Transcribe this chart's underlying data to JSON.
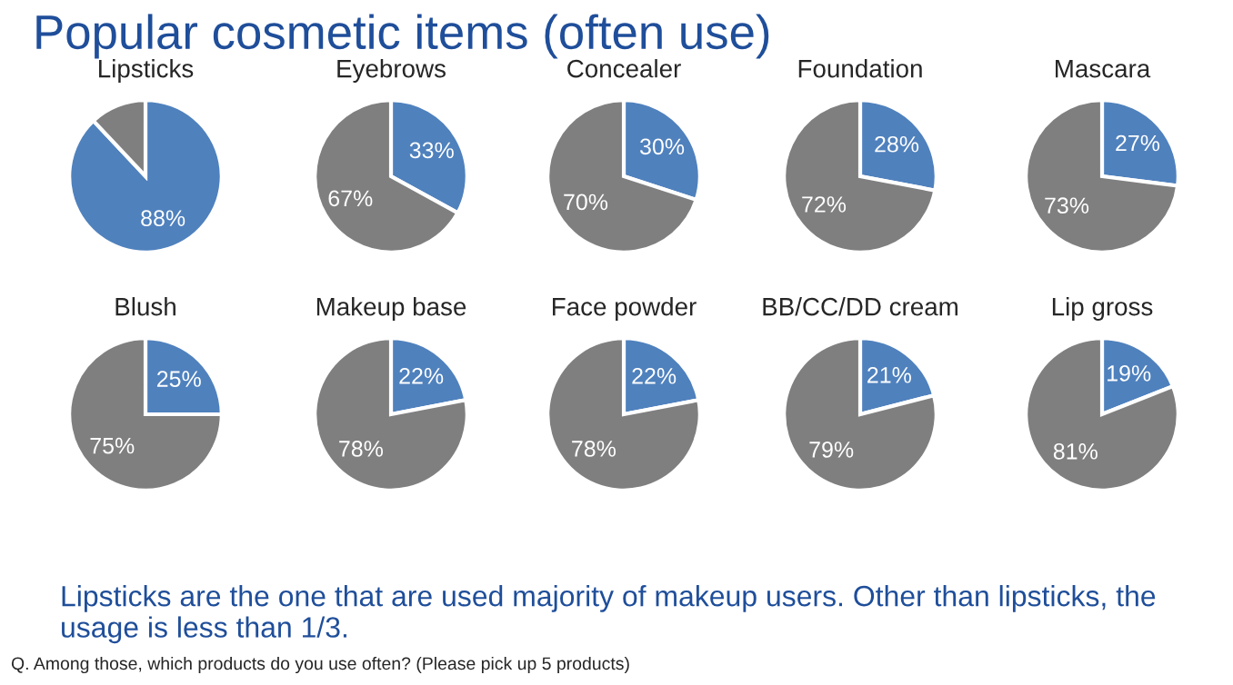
{
  "chart_data": [
    {
      "type": "pie",
      "title": "Lipsticks",
      "categories": [
        null,
        null
      ],
      "values": [
        88,
        12
      ],
      "colors": [
        "#4f81bd",
        "#7f7f7f"
      ],
      "value_labels": [
        "88%",
        null
      ]
    },
    {
      "type": "pie",
      "title": "Eyebrows",
      "categories": [
        null,
        null
      ],
      "values": [
        33,
        67
      ],
      "colors": [
        "#4f81bd",
        "#7f7f7f"
      ],
      "value_labels": [
        "33%",
        "67%"
      ]
    },
    {
      "type": "pie",
      "title": "Concealer",
      "categories": [
        null,
        null
      ],
      "values": [
        30,
        70
      ],
      "colors": [
        "#4f81bd",
        "#7f7f7f"
      ],
      "value_labels": [
        "30%",
        "70%"
      ]
    },
    {
      "type": "pie",
      "title": "Foundation",
      "categories": [
        null,
        null
      ],
      "values": [
        28,
        72
      ],
      "colors": [
        "#4f81bd",
        "#7f7f7f"
      ],
      "value_labels": [
        "28%",
        "72%"
      ]
    },
    {
      "type": "pie",
      "title": "Mascara",
      "categories": [
        null,
        null
      ],
      "values": [
        27,
        73
      ],
      "colors": [
        "#4f81bd",
        "#7f7f7f"
      ],
      "value_labels": [
        "27%",
        "73%"
      ]
    },
    {
      "type": "pie",
      "title": "Blush",
      "categories": [
        null,
        null
      ],
      "values": [
        25,
        75
      ],
      "colors": [
        "#4f81bd",
        "#7f7f7f"
      ],
      "value_labels": [
        "25%",
        "75%"
      ]
    },
    {
      "type": "pie",
      "title": "Makeup base",
      "categories": [
        null,
        null
      ],
      "values": [
        22,
        78
      ],
      "colors": [
        "#4f81bd",
        "#7f7f7f"
      ],
      "value_labels": [
        "22%",
        "78%"
      ]
    },
    {
      "type": "pie",
      "title": "Face powder",
      "categories": [
        null,
        null
      ],
      "values": [
        22,
        78
      ],
      "colors": [
        "#4f81bd",
        "#7f7f7f"
      ],
      "value_labels": [
        "22%",
        "78%"
      ]
    },
    {
      "type": "pie",
      "title": "BB/CC/DD cream",
      "categories": [
        null,
        null
      ],
      "values": [
        21,
        79
      ],
      "colors": [
        "#4f81bd",
        "#7f7f7f"
      ],
      "value_labels": [
        "21%",
        "79%"
      ]
    },
    {
      "type": "pie",
      "title": "Lip gross",
      "categories": [
        null,
        null
      ],
      "values": [
        19,
        81
      ],
      "colors": [
        "#4f81bd",
        "#7f7f7f"
      ],
      "value_labels": [
        "19%",
        "81%"
      ]
    },
    {
      "type": "other",
      "title": "Popular cosmetic items (often use)",
      "annotations": [
        "Lipsticks are the one that are used majority of makeup users. Other than lipsticks, the usage is less than 1/3.",
        "Q. Among those, which products do you use often? (Please pick up 5 products)"
      ]
    }
  ]
}
